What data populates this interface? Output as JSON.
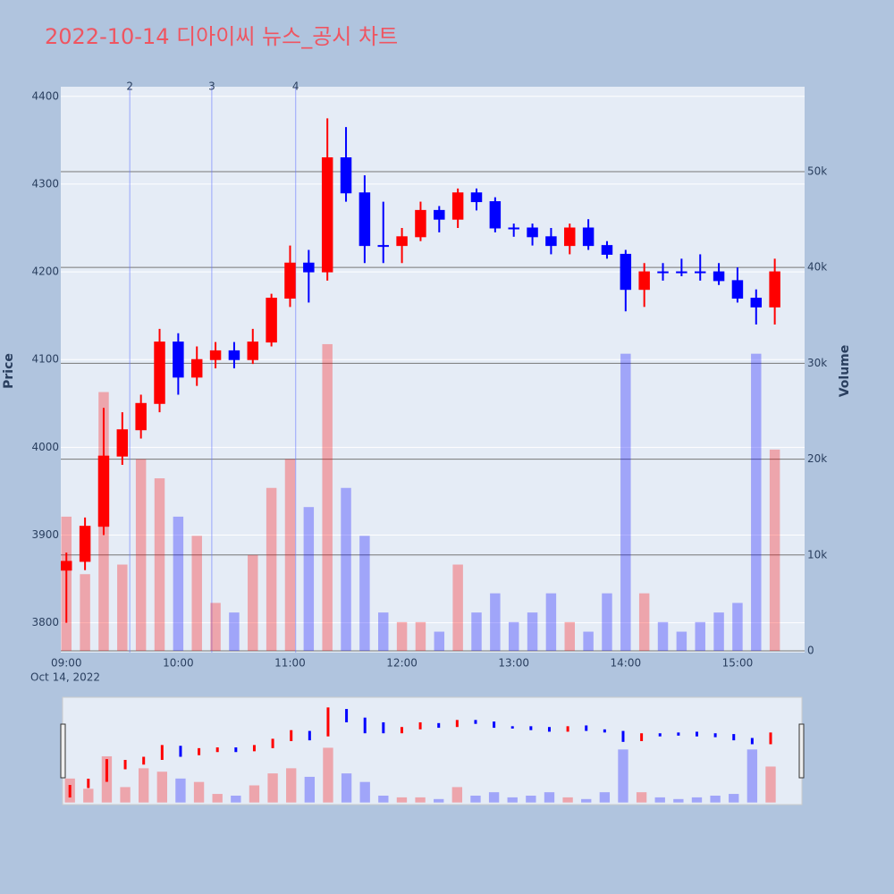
{
  "chart_data": {
    "type": "candlestick",
    "title": "2022-10-14 디아이씨 뉴스_공시 차트",
    "y_label": "Price",
    "y2_label": "Volume",
    "x_date_label": "Oct 14, 2022",
    "increasing_color": "#ff0000",
    "decreasing_color": "#0000ff",
    "x": [
      "2022-10-14 09:00",
      "2022-10-14 09:10",
      "2022-10-14 09:20",
      "2022-10-14 09:30",
      "2022-10-14 09:40",
      "2022-10-14 09:50",
      "2022-10-14 10:00",
      "2022-10-14 10:10",
      "2022-10-14 10:20",
      "2022-10-14 10:30",
      "2022-10-14 10:40",
      "2022-10-14 10:50",
      "2022-10-14 11:00",
      "2022-10-14 11:10",
      "2022-10-14 11:20",
      "2022-10-14 11:30",
      "2022-10-14 11:40",
      "2022-10-14 11:50",
      "2022-10-14 12:00",
      "2022-10-14 12:10",
      "2022-10-14 12:20",
      "2022-10-14 12:30",
      "2022-10-14 12:40",
      "2022-10-14 12:50",
      "2022-10-14 13:00",
      "2022-10-14 13:10",
      "2022-10-14 13:20",
      "2022-10-14 13:30",
      "2022-10-14 13:40",
      "2022-10-14 13:50",
      "2022-10-14 14:00",
      "2022-10-14 14:10",
      "2022-10-14 14:20",
      "2022-10-14 14:30",
      "2022-10-14 14:40",
      "2022-10-14 14:50",
      "2022-10-14 15:00",
      "2022-10-14 15:10",
      "2022-10-14 15:20"
    ],
    "open": [
      3860,
      3870,
      3910,
      3990,
      4020,
      4050,
      4120,
      4080,
      4100,
      4110,
      4100,
      4120,
      4170,
      4210,
      4200,
      4330,
      4290,
      4230,
      4230,
      4240,
      4270,
      4260,
      4290,
      4280,
      4250,
      4250,
      4240,
      4230,
      4250,
      4230,
      4220,
      4180,
      4200,
      4200,
      4200,
      4200,
      4190,
      4170,
      4160
    ],
    "high": [
      3880,
      3920,
      4045,
      4040,
      4060,
      4135,
      4130,
      4115,
      4120,
      4120,
      4135,
      4175,
      4230,
      4225,
      4375,
      4365,
      4310,
      4280,
      4250,
      4280,
      4275,
      4295,
      4295,
      4285,
      4255,
      4255,
      4250,
      4255,
      4260,
      4235,
      4225,
      4210,
      4210,
      4215,
      4220,
      4210,
      4205,
      4180,
      4215
    ],
    "low": [
      3800,
      3860,
      3900,
      3980,
      4010,
      4040,
      4060,
      4070,
      4090,
      4090,
      4095,
      4115,
      4160,
      4165,
      4190,
      4280,
      4210,
      4210,
      4210,
      4235,
      4245,
      4250,
      4270,
      4245,
      4240,
      4230,
      4220,
      4220,
      4225,
      4215,
      4155,
      4160,
      4190,
      4195,
      4190,
      4185,
      4165,
      4140,
      4140
    ],
    "close": [
      3870,
      3910,
      3990,
      4020,
      4050,
      4120,
      4080,
      4100,
      4110,
      4100,
      4120,
      4170,
      4210,
      4200,
      4330,
      4290,
      4230,
      4230,
      4240,
      4270,
      4260,
      4290,
      4280,
      4250,
      4250,
      4240,
      4230,
      4250,
      4230,
      4220,
      4180,
      4200,
      4200,
      4200,
      4200,
      4190,
      4170,
      4160,
      4200
    ],
    "volume": [
      14000,
      8000,
      27000,
      9000,
      20000,
      18000,
      14000,
      12000,
      5000,
      4000,
      10000,
      17000,
      20000,
      15000,
      32000,
      17000,
      12000,
      4000,
      3000,
      3000,
      2000,
      9000,
      4000,
      6000,
      3000,
      4000,
      6000,
      3000,
      2000,
      6000,
      31000,
      6000,
      3000,
      2000,
      3000,
      4000,
      5000,
      31000,
      21000
    ],
    "news_markers": [
      {
        "x": "2022-10-14 09:34",
        "label": "2"
      },
      {
        "x": "2022-10-14 10:18",
        "label": "3"
      },
      {
        "x": "2022-10-14 11:03",
        "label": "4"
      }
    ],
    "xlim": [
      "2022-10-14 08:57",
      "2022-10-14 15:36"
    ],
    "xticks": [
      {
        "value": "2022-10-14 09:00",
        "label": "09:00"
      },
      {
        "value": "2022-10-14 10:00",
        "label": "10:00"
      },
      {
        "value": "2022-10-14 11:00",
        "label": "11:00"
      },
      {
        "value": "2022-10-14 12:00",
        "label": "12:00"
      },
      {
        "value": "2022-10-14 13:00",
        "label": "13:00"
      },
      {
        "value": "2022-10-14 14:00",
        "label": "14:00"
      },
      {
        "value": "2022-10-14 15:00",
        "label": "15:00"
      }
    ],
    "ylim": [
      3766,
      4411
    ],
    "yticks": [
      3800,
      3900,
      4000,
      4100,
      4200,
      4300,
      4400
    ],
    "y2lim": [
      -187,
      58860
    ],
    "y2ticks": [
      0,
      {
        "value": 10000,
        "label": "10k"
      },
      {
        "value": 20000,
        "label": "20k"
      },
      {
        "value": 30000,
        "label": "30k"
      },
      {
        "value": 40000,
        "label": "40k"
      },
      {
        "value": 50000,
        "label": "50k"
      }
    ],
    "grid": true,
    "range_slider": true
  }
}
